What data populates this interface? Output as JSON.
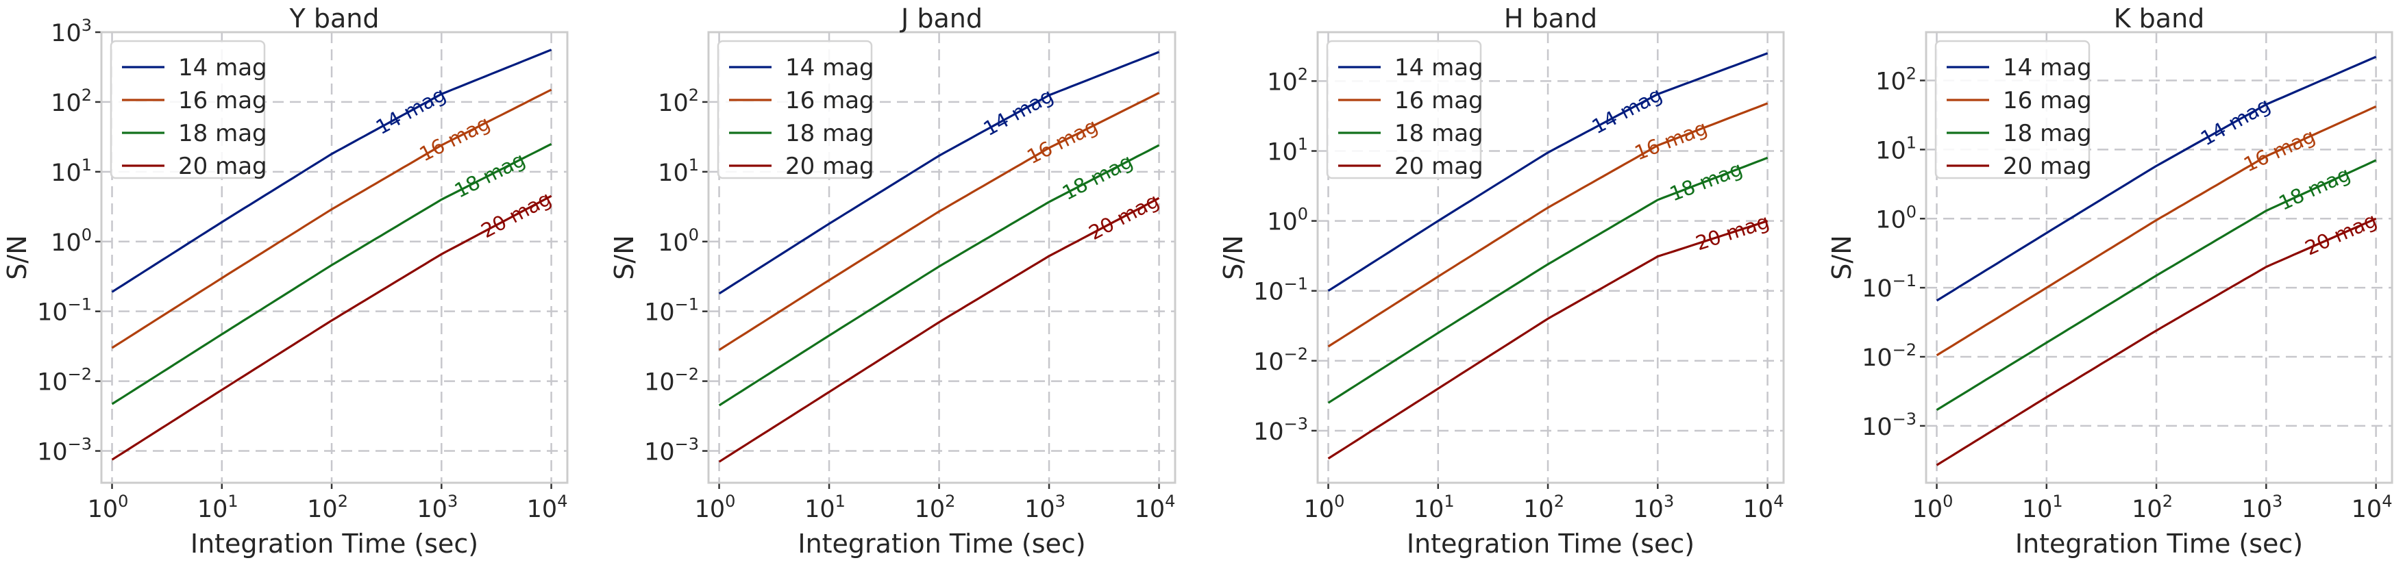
{
  "chart_data": [
    {
      "type": "line",
      "title": "Y band",
      "xlabel": "Integration Time (sec)",
      "ylabel": "S/N",
      "xscale": "log",
      "yscale": "log",
      "xlim": [
        0.8,
        14000
      ],
      "ylim": [
        0.00035,
        1000
      ],
      "xticks": [
        1,
        10,
        100,
        1000,
        10000
      ],
      "xtick_labels": [
        {
          "base": "10",
          "exp": "0"
        },
        {
          "base": "10",
          "exp": "1"
        },
        {
          "base": "10",
          "exp": "2"
        },
        {
          "base": "10",
          "exp": "3"
        },
        {
          "base": "10",
          "exp": "4"
        }
      ],
      "yticks": [
        0.001,
        0.01,
        0.1,
        1,
        10,
        100,
        1000
      ],
      "ytick_labels": [
        {
          "base": "10",
          "exp": "−3"
        },
        {
          "base": "10",
          "exp": "−2"
        },
        {
          "base": "10",
          "exp": "−1"
        },
        {
          "base": "10",
          "exp": "0"
        },
        {
          "base": "10",
          "exp": "1"
        },
        {
          "base": "10",
          "exp": "2"
        },
        {
          "base": "10",
          "exp": "3"
        }
      ],
      "grid": true,
      "legend": "upper-left",
      "series": [
        {
          "name": "14 mag",
          "inline_label": "14 mag",
          "color": "#001c7f",
          "x": [
            1,
            10,
            100,
            1000,
            10000
          ],
          "y": [
            0.19,
            1.9,
            18,
            130,
            560
          ]
        },
        {
          "name": "16 mag",
          "inline_label": "16 mag",
          "color": "#b1400d",
          "x": [
            1,
            10,
            100,
            1000,
            10000
          ],
          "y": [
            0.03,
            0.3,
            2.9,
            24,
            150
          ]
        },
        {
          "name": "18 mag",
          "inline_label": "18 mag",
          "color": "#12711c",
          "x": [
            1,
            10,
            100,
            1000,
            10000
          ],
          "y": [
            0.0047,
            0.047,
            0.46,
            4.0,
            25
          ]
        },
        {
          "name": "20 mag",
          "inline_label": "20 mag",
          "color": "#8c0800",
          "x": [
            1,
            10,
            100,
            1000,
            10000
          ],
          "y": [
            0.00075,
            0.0075,
            0.074,
            0.66,
            4.5
          ]
        }
      ]
    },
    {
      "type": "line",
      "title": "J band",
      "xlabel": "Integration Time (sec)",
      "ylabel": "S/N",
      "xscale": "log",
      "yscale": "log",
      "xlim": [
        0.8,
        14000
      ],
      "ylim": [
        0.00035,
        1000
      ],
      "xticks": [
        1,
        10,
        100,
        1000,
        10000
      ],
      "xtick_labels": [
        {
          "base": "10",
          "exp": "0"
        },
        {
          "base": "10",
          "exp": "1"
        },
        {
          "base": "10",
          "exp": "2"
        },
        {
          "base": "10",
          "exp": "3"
        },
        {
          "base": "10",
          "exp": "4"
        }
      ],
      "yticks": [
        0.001,
        0.01,
        0.1,
        1,
        10,
        100
      ],
      "ytick_labels": [
        {
          "base": "10",
          "exp": "−3"
        },
        {
          "base": "10",
          "exp": "−2"
        },
        {
          "base": "10",
          "exp": "−1"
        },
        {
          "base": "10",
          "exp": "0"
        },
        {
          "base": "10",
          "exp": "1"
        },
        {
          "base": "10",
          "exp": "2"
        }
      ],
      "grid": true,
      "legend": "upper-left",
      "series": [
        {
          "name": "14 mag",
          "inline_label": "14 mag",
          "color": "#001c7f",
          "x": [
            1,
            10,
            100,
            1000,
            10000
          ],
          "y": [
            0.18,
            1.8,
            17,
            125,
            520
          ]
        },
        {
          "name": "16 mag",
          "inline_label": "16 mag",
          "color": "#b1400d",
          "x": [
            1,
            10,
            100,
            1000,
            10000
          ],
          "y": [
            0.028,
            0.28,
            2.7,
            22,
            135
          ]
        },
        {
          "name": "18 mag",
          "inline_label": "18 mag",
          "color": "#12711c",
          "x": [
            1,
            10,
            100,
            1000,
            10000
          ],
          "y": [
            0.0045,
            0.045,
            0.44,
            3.7,
            24
          ]
        },
        {
          "name": "20 mag",
          "inline_label": "20 mag",
          "color": "#8c0800",
          "x": [
            1,
            10,
            100,
            1000,
            10000
          ],
          "y": [
            0.0007,
            0.007,
            0.07,
            0.62,
            4.2
          ]
        }
      ]
    },
    {
      "type": "line",
      "title": "H band",
      "xlabel": "Integration Time (sec)",
      "ylabel": "S/N",
      "xscale": "log",
      "yscale": "log",
      "xlim": [
        0.8,
        14000
      ],
      "ylim": [
        0.00018,
        500
      ],
      "xticks": [
        1,
        10,
        100,
        1000,
        10000
      ],
      "xtick_labels": [
        {
          "base": "10",
          "exp": "0"
        },
        {
          "base": "10",
          "exp": "1"
        },
        {
          "base": "10",
          "exp": "2"
        },
        {
          "base": "10",
          "exp": "3"
        },
        {
          "base": "10",
          "exp": "4"
        }
      ],
      "yticks": [
        0.001,
        0.01,
        0.1,
        1,
        10,
        100
      ],
      "ytick_labels": [
        {
          "base": "10",
          "exp": "−3"
        },
        {
          "base": "10",
          "exp": "−2"
        },
        {
          "base": "10",
          "exp": "−1"
        },
        {
          "base": "10",
          "exp": "0"
        },
        {
          "base": "10",
          "exp": "1"
        },
        {
          "base": "10",
          "exp": "2"
        }
      ],
      "grid": true,
      "legend": "upper-left",
      "series": [
        {
          "name": "14 mag",
          "inline_label": "14 mag",
          "color": "#001c7f",
          "x": [
            1,
            10,
            100,
            1000,
            10000
          ],
          "y": [
            0.1,
            1.0,
            9.5,
            65,
            250
          ]
        },
        {
          "name": "16 mag",
          "inline_label": "16 mag",
          "color": "#b1400d",
          "x": [
            1,
            10,
            100,
            1000,
            10000
          ],
          "y": [
            0.016,
            0.16,
            1.55,
            12,
            48
          ]
        },
        {
          "name": "18 mag",
          "inline_label": "18 mag",
          "color": "#12711c",
          "x": [
            1,
            10,
            100,
            1000,
            10000
          ],
          "y": [
            0.0025,
            0.025,
            0.24,
            2.0,
            8.0
          ]
        },
        {
          "name": "20 mag",
          "inline_label": "20 mag",
          "color": "#8c0800",
          "x": [
            1,
            10,
            100,
            1000,
            10000
          ],
          "y": [
            0.0004,
            0.004,
            0.04,
            0.31,
            1.0
          ]
        }
      ]
    },
    {
      "type": "line",
      "title": "K band",
      "xlabel": "Integration Time (sec)",
      "ylabel": "S/N",
      "xscale": "log",
      "yscale": "log",
      "xlim": [
        0.8,
        14000
      ],
      "ylim": [
        0.00015,
        500
      ],
      "xticks": [
        1,
        10,
        100,
        1000,
        10000
      ],
      "xtick_labels": [
        {
          "base": "10",
          "exp": "0"
        },
        {
          "base": "10",
          "exp": "1"
        },
        {
          "base": "10",
          "exp": "2"
        },
        {
          "base": "10",
          "exp": "3"
        },
        {
          "base": "10",
          "exp": "4"
        }
      ],
      "yticks": [
        0.001,
        0.01,
        0.1,
        1,
        10,
        100
      ],
      "ytick_labels": [
        {
          "base": "10",
          "exp": "−3"
        },
        {
          "base": "10",
          "exp": "−2"
        },
        {
          "base": "10",
          "exp": "−1"
        },
        {
          "base": "10",
          "exp": "0"
        },
        {
          "base": "10",
          "exp": "1"
        },
        {
          "base": "10",
          "exp": "2"
        }
      ],
      "grid": true,
      "legend": "upper-left",
      "series": [
        {
          "name": "14 mag",
          "inline_label": "14 mag",
          "color": "#001c7f",
          "x": [
            1,
            10,
            100,
            1000,
            10000
          ],
          "y": [
            0.065,
            0.62,
            5.8,
            45,
            220
          ]
        },
        {
          "name": "16 mag",
          "inline_label": "16 mag",
          "color": "#b1400d",
          "x": [
            1,
            10,
            100,
            1000,
            10000
          ],
          "y": [
            0.0105,
            0.1,
            0.95,
            8.0,
            42
          ]
        },
        {
          "name": "18 mag",
          "inline_label": "18 mag",
          "color": "#12711c",
          "x": [
            1,
            10,
            100,
            1000,
            10000
          ],
          "y": [
            0.0017,
            0.016,
            0.15,
            1.3,
            7.0
          ]
        },
        {
          "name": "20 mag",
          "inline_label": "20 mag",
          "color": "#8c0800",
          "x": [
            1,
            10,
            100,
            1000,
            10000
          ],
          "y": [
            0.00027,
            0.0026,
            0.024,
            0.2,
            1.0
          ]
        }
      ]
    }
  ]
}
